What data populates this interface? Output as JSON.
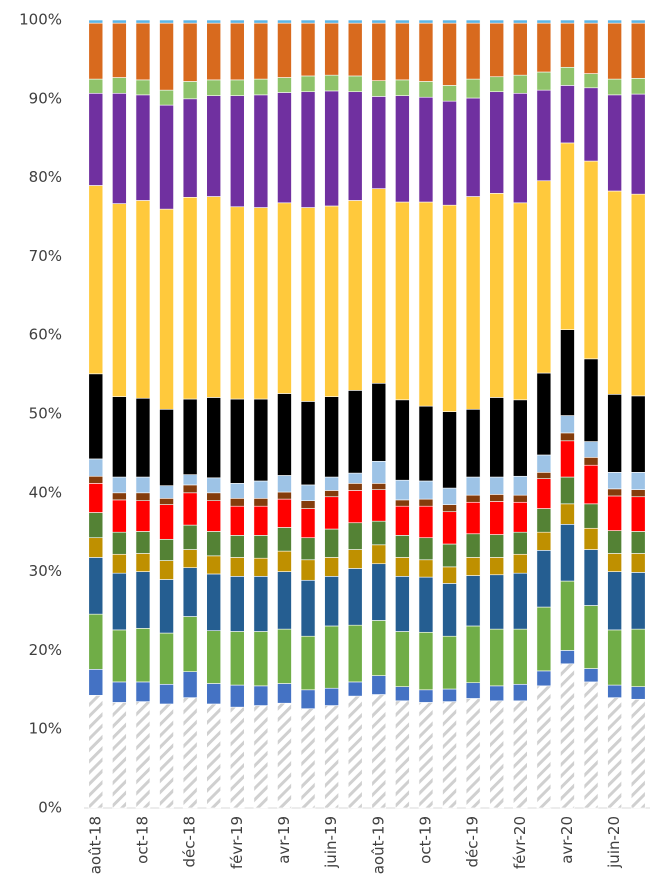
{
  "chart_data": {
    "type": "stacked_bar",
    "categories": [
      "août-18",
      null,
      "oct-18",
      null,
      "déc-18",
      null,
      "févr-19",
      null,
      "avr-19",
      null,
      "juin-19",
      null,
      "août-19",
      null,
      "oct-19",
      null,
      "déc-19",
      null,
      "févr-20",
      null,
      "avr-20",
      null,
      "juin-20",
      null
    ],
    "ylim": [
      0,
      100
    ],
    "yticks": [
      {
        "value": 0,
        "label": "0%"
      },
      {
        "value": 10,
        "label": "10%"
      },
      {
        "value": 20,
        "label": "20%"
      },
      {
        "value": 30,
        "label": "30%"
      },
      {
        "value": 40,
        "label": "40%"
      },
      {
        "value": 50,
        "label": "50%"
      },
      {
        "value": 60,
        "label": "60%"
      },
      {
        "value": 70,
        "label": "70%"
      },
      {
        "value": 80,
        "label": "80%"
      },
      {
        "value": 90,
        "label": "90%"
      },
      {
        "value": 100,
        "label": "100%"
      }
    ],
    "grid": false,
    "series": [
      {
        "color": "#d0d0d0",
        "hatch": true,
        "values": [
          14.3,
          13.4,
          13.5,
          13.2,
          14.0,
          13.2,
          12.8,
          13.0,
          13.3,
          12.6,
          13.0,
          14.2,
          14.4,
          13.6,
          13.4,
          13.5,
          13.9,
          13.6,
          13.6,
          15.5,
          18.3,
          16.0,
          14.0,
          13.8
        ]
      },
      {
        "color": "#4472c4",
        "values": [
          3.3,
          2.6,
          2.5,
          2.5,
          3.3,
          2.6,
          2.8,
          2.5,
          2.5,
          2.4,
          2.2,
          1.8,
          2.4,
          1.8,
          1.6,
          1.6,
          2.0,
          1.9,
          2.1,
          1.9,
          1.7,
          1.7,
          1.6,
          1.6
        ]
      },
      {
        "color": "#70ad47",
        "values": [
          7.0,
          6.6,
          6.8,
          6.5,
          7.0,
          6.7,
          6.8,
          6.9,
          6.9,
          6.8,
          7.9,
          7.2,
          7.0,
          7.0,
          7.3,
          6.7,
          7.2,
          7.2,
          7.0,
          8.1,
          8.8,
          8.0,
          7.0,
          7.3
        ]
      },
      {
        "color": "#255e91",
        "values": [
          7.2,
          7.2,
          7.2,
          6.8,
          6.2,
          7.2,
          7.0,
          7.0,
          7.3,
          7.1,
          6.3,
          7.2,
          7.2,
          7.0,
          7.0,
          6.7,
          6.4,
          6.9,
          7.1,
          7.2,
          7.2,
          7.1,
          7.4,
          7.2
        ]
      },
      {
        "color": "#bf9000",
        "values": [
          2.5,
          2.4,
          2.3,
          2.4,
          2.3,
          2.3,
          2.4,
          2.3,
          2.6,
          2.6,
          2.4,
          2.4,
          2.4,
          2.4,
          2.2,
          2.1,
          2.3,
          2.2,
          2.4,
          2.3,
          2.6,
          2.7,
          2.3,
          2.4
        ]
      },
      {
        "color": "#548235",
        "values": [
          3.2,
          2.8,
          2.8,
          2.7,
          3.1,
          3.1,
          2.8,
          2.9,
          3.0,
          2.8,
          3.6,
          3.4,
          3.0,
          2.8,
          2.8,
          2.9,
          3.0,
          2.9,
          2.8,
          3.0,
          3.4,
          3.1,
          2.9,
          2.8
        ]
      },
      {
        "color": "#ff0000",
        "values": [
          3.7,
          4.1,
          3.9,
          4.4,
          4.1,
          3.9,
          3.7,
          3.7,
          3.6,
          3.7,
          4.1,
          4.1,
          4.0,
          3.7,
          4.0,
          4.1,
          4.0,
          4.2,
          3.8,
          3.8,
          4.6,
          4.9,
          4.4,
          4.4
        ]
      },
      {
        "color": "#843c0c",
        "values": [
          0.9,
          0.9,
          1.0,
          0.8,
          1.0,
          1.0,
          1.0,
          1.0,
          0.9,
          1.0,
          0.8,
          0.9,
          0.8,
          0.8,
          0.9,
          0.9,
          0.9,
          0.9,
          0.9,
          0.8,
          1.0,
          1.0,
          0.9,
          0.9
        ]
      },
      {
        "color": "#9dc3e6",
        "values": [
          2.2,
          2.0,
          2.0,
          1.6,
          1.3,
          1.9,
          1.9,
          2.2,
          2.1,
          2.0,
          1.7,
          1.3,
          2.8,
          2.5,
          2.3,
          2.1,
          2.3,
          2.2,
          2.4,
          2.2,
          2.2,
          2.0,
          2.1,
          2.2
        ]
      },
      {
        "color": "#000000",
        "values": [
          10.8,
          10.2,
          10.0,
          9.7,
          9.6,
          10.2,
          10.7,
          10.4,
          10.4,
          10.6,
          10.2,
          10.5,
          9.9,
          10.2,
          9.5,
          9.7,
          8.6,
          10.1,
          9.7,
          10.4,
          10.9,
          10.5,
          9.9,
          9.7
        ]
      },
      {
        "color": "#ffc93c",
        "values": [
          23.9,
          24.5,
          25.1,
          25.4,
          25.6,
          25.5,
          24.4,
          24.3,
          24.2,
          24.6,
          24.2,
          24.1,
          24.7,
          25.1,
          25.9,
          26.2,
          27.0,
          25.9,
          25.0,
          24.4,
          23.7,
          25.1,
          25.8,
          25.6
        ]
      },
      {
        "color": "#7030a0",
        "values": [
          11.7,
          14.0,
          13.4,
          13.2,
          12.5,
          12.8,
          14.1,
          14.3,
          14.0,
          14.7,
          14.6,
          13.8,
          11.7,
          13.5,
          13.3,
          13.2,
          12.5,
          12.9,
          13.9,
          11.5,
          7.3,
          9.3,
          12.2,
          12.7
        ]
      },
      {
        "color": "#8fc36a",
        "values": [
          1.8,
          2.0,
          1.9,
          1.9,
          2.2,
          2.0,
          2.0,
          2.0,
          1.9,
          2.0,
          2.0,
          2.0,
          2.0,
          2.0,
          2.0,
          2.0,
          2.4,
          1.9,
          2.3,
          2.3,
          2.3,
          1.8,
          2.0,
          2.0
        ]
      },
      {
        "color": "#d86a1e",
        "values": [
          7.1,
          6.9,
          7.2,
          8.5,
          7.4,
          7.2,
          7.2,
          7.1,
          6.9,
          6.7,
          6.6,
          6.7,
          7.3,
          7.2,
          7.4,
          7.9,
          7.1,
          6.8,
          6.6,
          6.2,
          5.6,
          6.4,
          7.1,
          7.0
        ]
      },
      {
        "color": "#5bb4e5",
        "values": [
          0.4,
          0.4,
          0.4,
          0.4,
          0.4,
          0.4,
          0.4,
          0.4,
          0.4,
          0.4,
          0.4,
          0.4,
          0.4,
          0.4,
          0.4,
          0.4,
          0.4,
          0.4,
          0.4,
          0.4,
          0.4,
          0.4,
          0.4,
          0.4
        ]
      }
    ]
  }
}
